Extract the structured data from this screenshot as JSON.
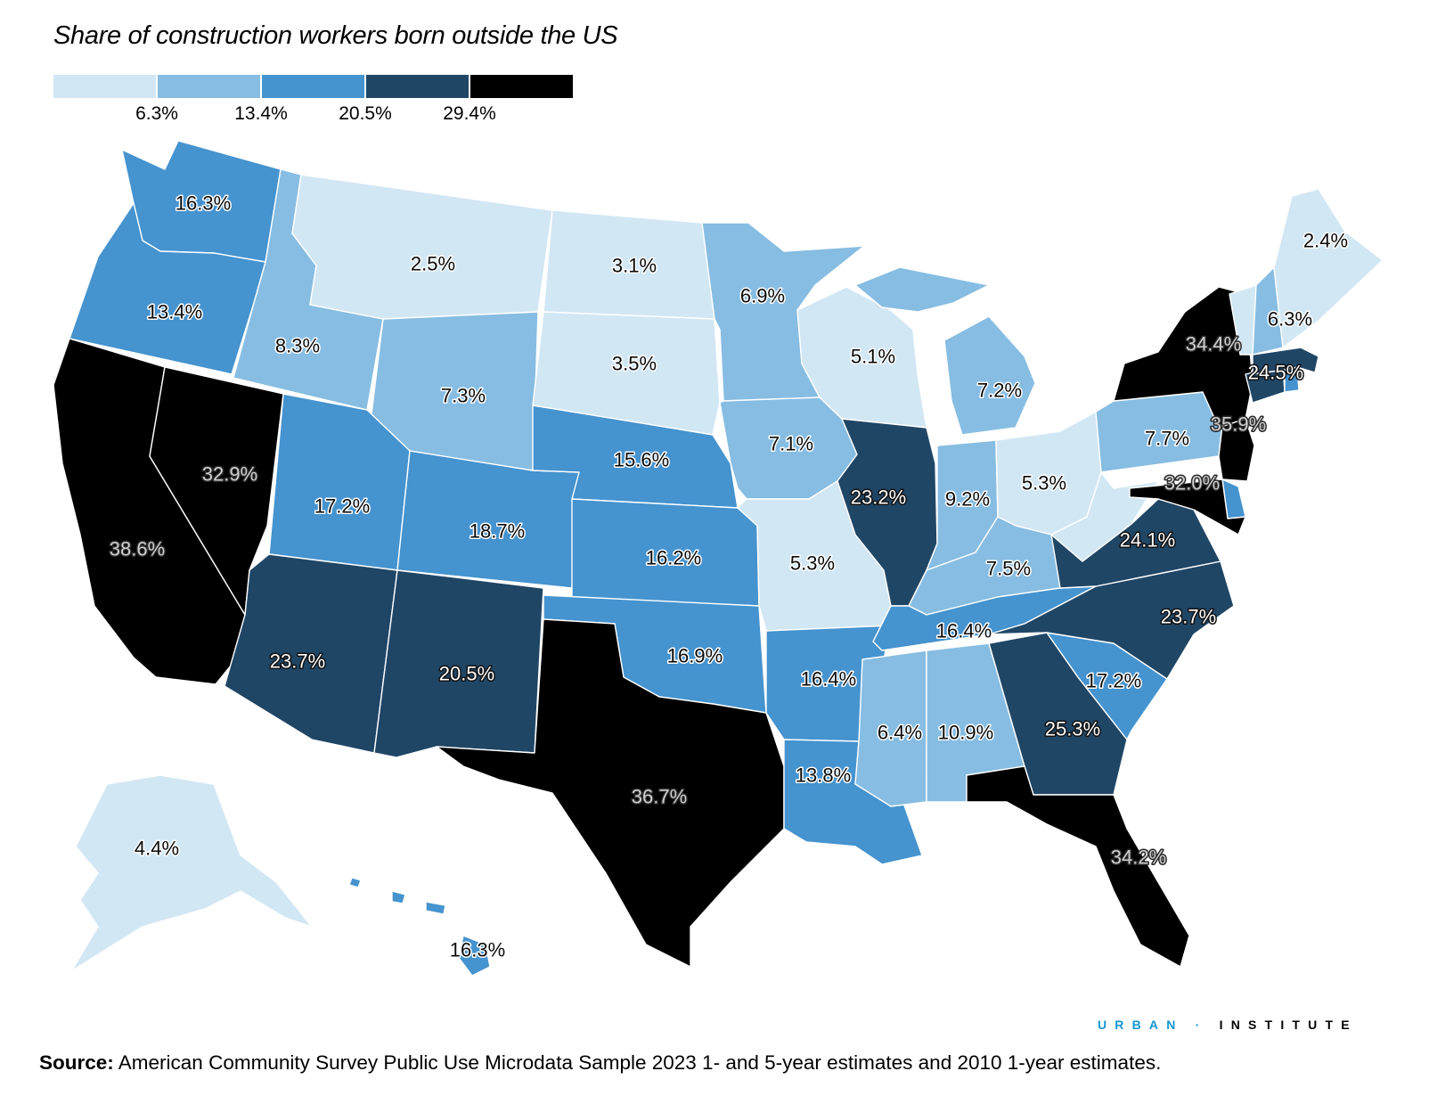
{
  "title": "Share of construction workers born outside the US",
  "legend": {
    "colors": [
      "#d2e7f4",
      "#87bde2",
      "#4593cf",
      "#204666",
      "#000000"
    ],
    "ticks": [
      "6.3%",
      "13.4%",
      "20.5%",
      "29.4%"
    ]
  },
  "states": [
    {
      "id": "WA",
      "label": "16.3%",
      "value": 16.3,
      "bin": 2
    },
    {
      "id": "OR",
      "label": "13.4%",
      "value": 13.4,
      "bin": 2
    },
    {
      "id": "CA",
      "label": "38.6%",
      "value": 38.6,
      "bin": 4
    },
    {
      "id": "NV",
      "label": "32.9%",
      "value": 32.9,
      "bin": 4
    },
    {
      "id": "ID",
      "label": "8.3%",
      "value": 8.3,
      "bin": 1
    },
    {
      "id": "MT",
      "label": "2.5%",
      "value": 2.5,
      "bin": 0
    },
    {
      "id": "WY",
      "label": "7.3%",
      "value": 7.3,
      "bin": 1
    },
    {
      "id": "UT",
      "label": "17.2%",
      "value": 17.2,
      "bin": 2
    },
    {
      "id": "AZ",
      "label": "23.7%",
      "value": 23.7,
      "bin": 3
    },
    {
      "id": "CO",
      "label": "18.7%",
      "value": 18.7,
      "bin": 2
    },
    {
      "id": "NM",
      "label": "20.5%",
      "value": 20.5,
      "bin": 3
    },
    {
      "id": "ND",
      "label": "3.1%",
      "value": 3.1,
      "bin": 0
    },
    {
      "id": "SD",
      "label": "3.5%",
      "value": 3.5,
      "bin": 0
    },
    {
      "id": "NE",
      "label": "15.6%",
      "value": 15.6,
      "bin": 2
    },
    {
      "id": "KS",
      "label": "16.2%",
      "value": 16.2,
      "bin": 2
    },
    {
      "id": "OK",
      "label": "16.9%",
      "value": 16.9,
      "bin": 2
    },
    {
      "id": "TX",
      "label": "36.7%",
      "value": 36.7,
      "bin": 4
    },
    {
      "id": "MN",
      "label": "6.9%",
      "value": 6.9,
      "bin": 1
    },
    {
      "id": "IA",
      "label": "7.1%",
      "value": 7.1,
      "bin": 1
    },
    {
      "id": "MO",
      "label": "5.3%",
      "value": 5.3,
      "bin": 0
    },
    {
      "id": "AR",
      "label": "16.4%",
      "value": 16.4,
      "bin": 2
    },
    {
      "id": "LA",
      "label": "13.8%",
      "value": 13.8,
      "bin": 2
    },
    {
      "id": "WI",
      "label": "5.1%",
      "value": 5.1,
      "bin": 0
    },
    {
      "id": "IL",
      "label": "23.2%",
      "value": 23.2,
      "bin": 3
    },
    {
      "id": "MI",
      "label": "7.2%",
      "value": 7.2,
      "bin": 1
    },
    {
      "id": "IN",
      "label": "9.2%",
      "value": 9.2,
      "bin": 1
    },
    {
      "id": "OH",
      "label": "5.3%",
      "value": 5.3,
      "bin": 0
    },
    {
      "id": "KY",
      "label": "7.5%",
      "value": 7.5,
      "bin": 1
    },
    {
      "id": "TN",
      "label": "16.4%",
      "value": 16.4,
      "bin": 2
    },
    {
      "id": "MS",
      "label": "6.4%",
      "value": 6.4,
      "bin": 1
    },
    {
      "id": "AL",
      "label": "10.9%",
      "value": 10.9,
      "bin": 1
    },
    {
      "id": "GA",
      "label": "25.3%",
      "value": 25.3,
      "bin": 3
    },
    {
      "id": "FL",
      "label": "34.2%",
      "value": 34.2,
      "bin": 4
    },
    {
      "id": "SC",
      "label": "17.2%",
      "value": 17.2,
      "bin": 2
    },
    {
      "id": "NC",
      "label": "23.7%",
      "value": 23.7,
      "bin": 3
    },
    {
      "id": "VA",
      "label": "24.1%",
      "value": 24.1,
      "bin": 3
    },
    {
      "id": "WV",
      "label": "",
      "value": null,
      "bin": 0
    },
    {
      "id": "PA",
      "label": "7.7%",
      "value": 7.7,
      "bin": 1
    },
    {
      "id": "NY",
      "label": "34.4%",
      "value": 34.4,
      "bin": 4
    },
    {
      "id": "NJ",
      "label": "35.9%",
      "value": 35.9,
      "bin": 4
    },
    {
      "id": "DE",
      "label": "",
      "value": null,
      "bin": 2
    },
    {
      "id": "MD",
      "label": "32.0%",
      "value": 32.0,
      "bin": 4
    },
    {
      "id": "CT",
      "label": "",
      "value": null,
      "bin": 3
    },
    {
      "id": "RI",
      "label": "",
      "value": null,
      "bin": 2
    },
    {
      "id": "MA",
      "label": "24.5%",
      "value": 24.5,
      "bin": 3
    },
    {
      "id": "VT",
      "label": "",
      "value": null,
      "bin": 0
    },
    {
      "id": "NH",
      "label": "6.3%",
      "value": 6.3,
      "bin": 1
    },
    {
      "id": "ME",
      "label": "2.4%",
      "value": 2.4,
      "bin": 0
    },
    {
      "id": "AK",
      "label": "4.4%",
      "value": 4.4,
      "bin": 0
    },
    {
      "id": "HI",
      "label": "16.3%",
      "value": 16.3,
      "bin": 2
    }
  ],
  "brand": {
    "urban": "URBAN",
    "separator": "·",
    "institute": "INSTITUTE"
  },
  "source": {
    "prefix": "Source:",
    "text": " American Community Survey Public Use Microdata Sample 2023 1- and 5-year estimates and 2010 1-year estimates."
  }
}
